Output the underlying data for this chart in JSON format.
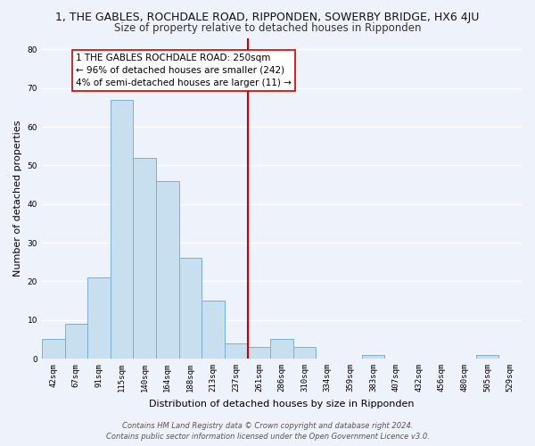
{
  "title": "1, THE GABLES, ROCHDALE ROAD, RIPPONDEN, SOWERBY BRIDGE, HX6 4JU",
  "subtitle": "Size of property relative to detached houses in Ripponden",
  "xlabel": "Distribution of detached houses by size in Ripponden",
  "ylabel": "Number of detached properties",
  "bar_labels": [
    "42sqm",
    "67sqm",
    "91sqm",
    "115sqm",
    "140sqm",
    "164sqm",
    "188sqm",
    "213sqm",
    "237sqm",
    "261sqm",
    "286sqm",
    "310sqm",
    "334sqm",
    "359sqm",
    "383sqm",
    "407sqm",
    "432sqm",
    "456sqm",
    "480sqm",
    "505sqm",
    "529sqm"
  ],
  "bar_heights": [
    5,
    9,
    21,
    67,
    52,
    46,
    26,
    15,
    4,
    3,
    5,
    3,
    0,
    0,
    1,
    0,
    0,
    0,
    0,
    1,
    0
  ],
  "bar_color": "#c8dff0",
  "bar_edge_color": "#7ab0d4",
  "vline_color": "#cc0000",
  "annotation_text": "1 THE GABLES ROCHDALE ROAD: 250sqm\n← 96% of detached houses are smaller (242)\n4% of semi-detached houses are larger (11) →",
  "ylim": [
    0,
    83
  ],
  "yticks": [
    0,
    10,
    20,
    30,
    40,
    50,
    60,
    70,
    80
  ],
  "footer_line1": "Contains HM Land Registry data © Crown copyright and database right 2024.",
  "footer_line2": "Contains public sector information licensed under the Open Government Licence v3.0.",
  "bg_color": "#eef2fb",
  "grid_color": "#ffffff",
  "title_fontsize": 9,
  "subtitle_fontsize": 8.5,
  "axis_label_fontsize": 8,
  "tick_fontsize": 6.5,
  "annotation_fontsize": 7.5,
  "footer_fontsize": 6
}
